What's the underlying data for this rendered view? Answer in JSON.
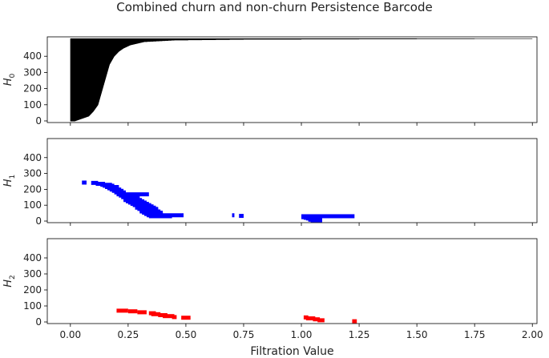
{
  "figure": {
    "title": "Combined churn and non-churn Persistence Barcode"
  },
  "chart_data": {
    "type": "barcode",
    "title": "Combined churn and non-churn Persistence Barcode",
    "xlabel": "Filtration Value",
    "xlim": [
      -0.1,
      2.02
    ],
    "xticks": [
      "0.00",
      "0.25",
      "0.50",
      "0.75",
      "1.00",
      "1.25",
      "1.50",
      "1.75",
      "2.00"
    ],
    "panels": [
      {
        "ylabel": "H",
        "ylabel_sub": "0",
        "color": "#000000",
        "ylim": [
          -10,
          520
        ],
        "yticks": [
          "0",
          "100",
          "200",
          "300",
          "400"
        ],
        "profile_rows": [
          0,
          15,
          30,
          60,
          100,
          150,
          200,
          250,
          300,
          350,
          400,
          430,
          450,
          470,
          490,
          500,
          505,
          510
        ],
        "profile_deaths": [
          0.02,
          0.05,
          0.08,
          0.1,
          0.12,
          0.13,
          0.14,
          0.15,
          0.16,
          0.17,
          0.19,
          0.21,
          0.23,
          0.26,
          0.32,
          0.45,
          0.75,
          2.0
        ],
        "max_row": 510,
        "birth": 0.0
      },
      {
        "ylabel": "H",
        "ylabel_sub": "1",
        "color": "#0000ff",
        "ylim": [
          -10,
          520
        ],
        "yticks": [
          "0",
          "100",
          "200",
          "300",
          "400"
        ],
        "bars": [
          [
            0.05,
            0.07,
            240
          ],
          [
            0.09,
            0.12,
            238
          ],
          [
            0.11,
            0.15,
            232
          ],
          [
            0.13,
            0.18,
            226
          ],
          [
            0.14,
            0.19,
            220
          ],
          [
            0.15,
            0.21,
            212
          ],
          [
            0.16,
            0.21,
            204
          ],
          [
            0.17,
            0.22,
            196
          ],
          [
            0.18,
            0.23,
            188
          ],
          [
            0.19,
            0.24,
            178
          ],
          [
            0.2,
            0.34,
            166
          ],
          [
            0.21,
            0.28,
            158
          ],
          [
            0.22,
            0.3,
            148
          ],
          [
            0.23,
            0.3,
            138
          ],
          [
            0.23,
            0.31,
            130
          ],
          [
            0.24,
            0.32,
            122
          ],
          [
            0.25,
            0.33,
            114
          ],
          [
            0.26,
            0.34,
            106
          ],
          [
            0.27,
            0.35,
            98
          ],
          [
            0.28,
            0.36,
            90
          ],
          [
            0.28,
            0.37,
            82
          ],
          [
            0.29,
            0.38,
            74
          ],
          [
            0.3,
            0.38,
            66
          ],
          [
            0.3,
            0.39,
            58
          ],
          [
            0.31,
            0.4,
            50
          ],
          [
            0.32,
            0.4,
            42
          ],
          [
            0.33,
            0.49,
            34
          ],
          [
            0.34,
            0.44,
            28
          ],
          [
            0.7,
            0.71,
            34
          ],
          [
            0.73,
            0.75,
            30
          ],
          [
            1.0,
            1.23,
            28
          ],
          [
            1.0,
            1.04,
            22
          ],
          [
            1.01,
            1.06,
            18
          ],
          [
            1.02,
            1.08,
            14
          ],
          [
            1.03,
            1.08,
            10
          ],
          [
            1.03,
            1.09,
            6
          ],
          [
            1.04,
            1.09,
            2
          ]
        ]
      },
      {
        "ylabel": "H",
        "ylabel_sub": "2",
        "color": "#ff0000",
        "ylim": [
          -10,
          520
        ],
        "yticks": [
          "0",
          "100",
          "200",
          "300",
          "400"
        ],
        "bars": [
          [
            0.2,
            0.25,
            68
          ],
          [
            0.25,
            0.29,
            64
          ],
          [
            0.29,
            0.33,
            58
          ],
          [
            0.34,
            0.37,
            52
          ],
          [
            0.35,
            0.39,
            46
          ],
          [
            0.38,
            0.42,
            40
          ],
          [
            0.4,
            0.45,
            34
          ],
          [
            0.44,
            0.46,
            28
          ],
          [
            0.48,
            0.52,
            24
          ],
          [
            1.01,
            1.03,
            26
          ],
          [
            1.02,
            1.06,
            20
          ],
          [
            1.05,
            1.08,
            14
          ],
          [
            1.07,
            1.1,
            8
          ],
          [
            1.22,
            1.24,
            2
          ]
        ]
      }
    ]
  }
}
